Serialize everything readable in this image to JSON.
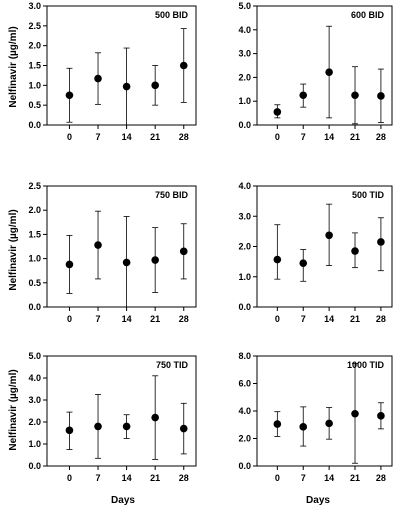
{
  "figure": {
    "ylabel": "Nelfinavir (µg/ml)",
    "xlabel": "Days"
  },
  "chart_data": [
    {
      "type": "scatter",
      "title": "500 BID",
      "x": [
        0,
        7,
        14,
        21,
        28
      ],
      "mean": [
        0.75,
        1.17,
        0.97,
        1.0,
        1.5
      ],
      "lower": [
        0.07,
        0.52,
        0.0,
        0.5,
        0.57
      ],
      "upper": [
        1.43,
        1.82,
        1.94,
        1.5,
        2.43
      ],
      "ylim": [
        0,
        3.0
      ],
      "yticks": [
        0.0,
        0.5,
        1.0,
        1.5,
        2.0,
        2.5,
        3.0
      ],
      "xticks": [
        0,
        7,
        14,
        21,
        28
      ]
    },
    {
      "type": "scatter",
      "title": "600 BID",
      "x": [
        0,
        7,
        14,
        21,
        28
      ],
      "mean": [
        0.55,
        1.25,
        2.22,
        1.25,
        1.22
      ],
      "lower": [
        0.3,
        0.75,
        0.3,
        0.05,
        0.1
      ],
      "upper": [
        0.85,
        1.72,
        4.15,
        2.45,
        2.35
      ],
      "ylim": [
        0,
        5.0
      ],
      "yticks": [
        0.0,
        1.0,
        2.0,
        3.0,
        4.0,
        5.0
      ],
      "xticks": [
        0,
        7,
        14,
        21,
        28
      ]
    },
    {
      "type": "scatter",
      "title": "750 BID",
      "x": [
        0,
        7,
        14,
        21,
        28
      ],
      "mean": [
        0.88,
        1.28,
        0.92,
        0.97,
        1.15
      ],
      "lower": [
        0.28,
        0.58,
        0.0,
        0.3,
        0.58
      ],
      "upper": [
        1.48,
        1.98,
        1.87,
        1.64,
        1.72
      ],
      "ylim": [
        0,
        2.5
      ],
      "yticks": [
        0.0,
        0.5,
        1.0,
        1.5,
        2.0,
        2.5
      ],
      "xticks": [
        0,
        7,
        14,
        21,
        28
      ]
    },
    {
      "type": "scatter",
      "title": "500 TID",
      "x": [
        0,
        7,
        14,
        21,
        28
      ],
      "mean": [
        1.57,
        1.45,
        2.37,
        1.85,
        2.15
      ],
      "lower": [
        0.92,
        0.85,
        1.37,
        1.3,
        1.2
      ],
      "upper": [
        2.72,
        1.9,
        3.4,
        2.45,
        2.95
      ],
      "ylim": [
        0,
        4.0
      ],
      "yticks": [
        0.0,
        1.0,
        2.0,
        3.0,
        4.0
      ],
      "xticks": [
        0,
        7,
        14,
        21,
        28
      ]
    },
    {
      "type": "scatter",
      "title": "750 TID",
      "x": [
        0,
        7,
        14,
        21,
        28
      ],
      "mean": [
        1.62,
        1.8,
        1.8,
        2.2,
        1.7
      ],
      "lower": [
        0.75,
        0.35,
        1.25,
        0.3,
        0.55
      ],
      "upper": [
        2.45,
        3.25,
        2.33,
        4.1,
        2.85
      ],
      "ylim": [
        0,
        5.0
      ],
      "yticks": [
        0.0,
        1.0,
        2.0,
        3.0,
        4.0,
        5.0
      ],
      "xticks": [
        0,
        7,
        14,
        21,
        28
      ]
    },
    {
      "type": "scatter",
      "title": "1000 TID",
      "x": [
        0,
        7,
        14,
        21,
        28
      ],
      "mean": [
        3.05,
        2.85,
        3.1,
        3.8,
        3.65
      ],
      "lower": [
        2.15,
        1.45,
        1.95,
        0.2,
        2.7
      ],
      "upper": [
        3.95,
        4.3,
        4.25,
        7.45,
        4.6
      ],
      "ylim": [
        0,
        8.0
      ],
      "yticks": [
        0.0,
        2.0,
        4.0,
        6.0,
        8.0
      ],
      "xticks": [
        0,
        7,
        14,
        21,
        28
      ]
    }
  ]
}
